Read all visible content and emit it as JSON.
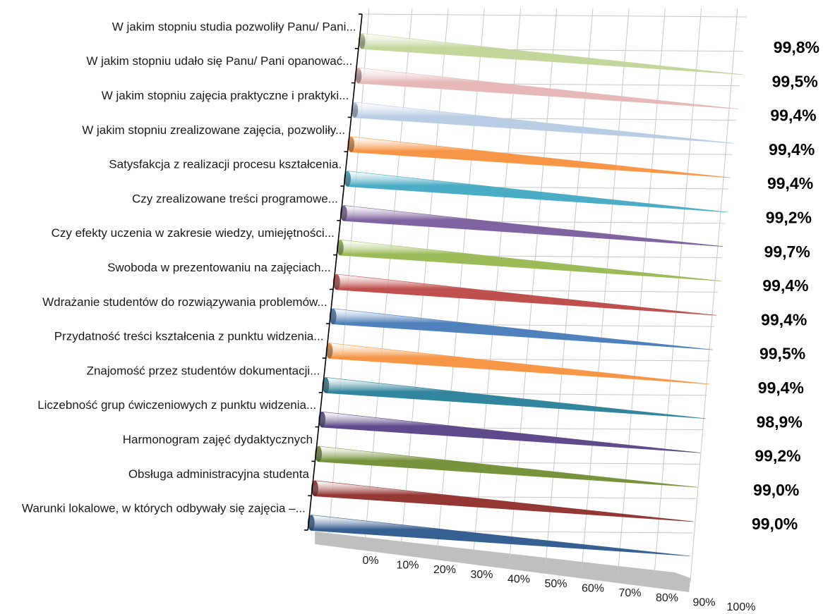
{
  "chart_data": {
    "type": "bar",
    "orientation": "horizontal",
    "style": "3d-cone",
    "categories": [
      "W jakim stopniu studia pozwoliły Panu/ Pani...",
      "W jakim stopniu udało się Panu/ Pani opanować...",
      "W jakim stopniu zajęcia praktyczne i praktyki...",
      "W jakim stopniu zrealizowane zajęcia, pozwoliły...",
      "Satysfakcja z realizacji procesu kształcenia.",
      "Czy zrealizowane treści programowe...",
      "Czy efekty uczenia w zakresie wiedzy, umiejętności...",
      "Swoboda w prezentowaniu na zajęciach...",
      "Wdrażanie studentów do rozwiązywania problemów...",
      "Przydatność treści kształcenia z punktu widzenia...",
      "Znajomość przez studentów dokumentacji...",
      "Liczebność grup ćwiczeniowych z punktu widzenia...",
      "Harmonogram zajęć dydaktycznych",
      "Obsługa administracyjna studenta",
      "Warunki lokalowe, w których odbywały się zajęcia –..."
    ],
    "values": [
      99.8,
      99.5,
      99.4,
      99.4,
      99.4,
      99.2,
      99.7,
      99.4,
      99.4,
      99.5,
      99.4,
      98.9,
      99.2,
      99.0,
      99.0
    ],
    "value_labels": [
      "99,8%",
      "99,5%",
      "99,4%",
      "99,4%",
      "99,4%",
      "99,2%",
      "99,7%",
      "99,4%",
      "99,4%",
      "99,5%",
      "99,4%",
      "98,9%",
      "99,2%",
      "99,0%",
      "99,0%"
    ],
    "colors": [
      "#c3d69b",
      "#e6b9b8",
      "#b9cde5",
      "#f79646",
      "#4bacc6",
      "#8064a2",
      "#9bbb59",
      "#c0504d",
      "#4f81bd",
      "#f79646",
      "#31859c",
      "#5f4b8b",
      "#77933c",
      "#953735",
      "#376092"
    ],
    "x_ticks": [
      "0%",
      "10%",
      "20%",
      "30%",
      "40%",
      "50%",
      "60%",
      "70%",
      "80%",
      "90%",
      "100%"
    ],
    "xlim": [
      0,
      100
    ],
    "grid": true,
    "legend": "none",
    "title": "",
    "xlabel": "",
    "ylabel": ""
  }
}
